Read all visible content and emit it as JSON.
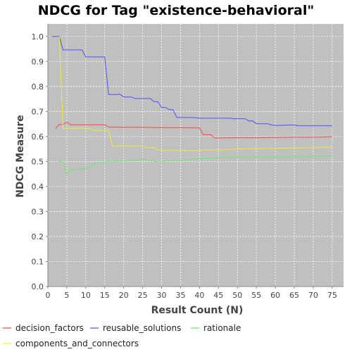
{
  "chart_data": {
    "type": "line",
    "title": "NDCG for Tag \"existence-behavioral\"",
    "xlabel": "Result Count (N)",
    "ylabel": "NDCG Measure",
    "xlim": [
      0,
      78
    ],
    "ylim": [
      0.0,
      1.05
    ],
    "xticks": [
      0,
      5,
      10,
      15,
      20,
      25,
      30,
      35,
      40,
      45,
      50,
      55,
      60,
      65,
      70,
      75
    ],
    "yticks": [
      0.0,
      0.1,
      0.2,
      0.3,
      0.4,
      0.5,
      0.6,
      0.7,
      0.8,
      0.9,
      1.0
    ],
    "grid": true,
    "legend_position": "bottom",
    "series": [
      {
        "name": "decision_factors",
        "color": "#ff4444",
        "points": [
          [
            2,
            0.631
          ],
          [
            3,
            0.648
          ],
          [
            4,
            0.648
          ],
          [
            5,
            0.657
          ],
          [
            6,
            0.647
          ],
          [
            7,
            0.647
          ],
          [
            8,
            0.647
          ],
          [
            9,
            0.647
          ],
          [
            10,
            0.647
          ],
          [
            11,
            0.647
          ],
          [
            12,
            0.647
          ],
          [
            13,
            0.647
          ],
          [
            14,
            0.647
          ],
          [
            15,
            0.647
          ],
          [
            16,
            0.638
          ],
          [
            20,
            0.637
          ],
          [
            25,
            0.637
          ],
          [
            30,
            0.635
          ],
          [
            35,
            0.635
          ],
          [
            40,
            0.634
          ],
          [
            41,
            0.607
          ],
          [
            43,
            0.607
          ],
          [
            44,
            0.594
          ],
          [
            50,
            0.595
          ],
          [
            55,
            0.595
          ],
          [
            60,
            0.596
          ],
          [
            65,
            0.597
          ],
          [
            70,
            0.597
          ],
          [
            75,
            0.599
          ]
        ]
      },
      {
        "name": "reusable_solutions",
        "color": "#4f4fff",
        "points": [
          [
            1,
            1.0
          ],
          [
            2,
            1.0
          ],
          [
            3,
            1.0
          ],
          [
            4,
            0.946
          ],
          [
            5,
            0.946
          ],
          [
            6,
            0.946
          ],
          [
            7,
            0.946
          ],
          [
            8,
            0.946
          ],
          [
            9,
            0.946
          ],
          [
            10,
            0.918
          ],
          [
            11,
            0.918
          ],
          [
            12,
            0.918
          ],
          [
            13,
            0.918
          ],
          [
            14,
            0.918
          ],
          [
            15,
            0.918
          ],
          [
            16,
            0.768
          ],
          [
            18,
            0.768
          ],
          [
            19,
            0.769
          ],
          [
            20,
            0.758
          ],
          [
            22,
            0.758
          ],
          [
            23,
            0.752
          ],
          [
            27,
            0.752
          ],
          [
            28,
            0.739
          ],
          [
            29,
            0.739
          ],
          [
            30,
            0.716
          ],
          [
            31,
            0.716
          ],
          [
            32,
            0.707
          ],
          [
            33,
            0.707
          ],
          [
            34,
            0.676
          ],
          [
            38,
            0.676
          ],
          [
            40,
            0.673
          ],
          [
            45,
            0.673
          ],
          [
            48,
            0.673
          ],
          [
            49,
            0.671
          ],
          [
            52,
            0.671
          ],
          [
            53,
            0.662
          ],
          [
            54,
            0.662
          ],
          [
            55,
            0.651
          ],
          [
            58,
            0.651
          ],
          [
            59,
            0.646
          ],
          [
            60,
            0.644
          ],
          [
            65,
            0.646
          ],
          [
            66,
            0.643
          ],
          [
            70,
            0.643
          ],
          [
            75,
            0.643
          ]
        ]
      },
      {
        "name": "rationale",
        "color": "#66ee66",
        "points": [
          [
            3,
            0.501
          ],
          [
            4,
            0.497
          ],
          [
            5,
            0.451
          ],
          [
            6,
            0.467
          ],
          [
            7,
            0.467
          ],
          [
            8,
            0.47
          ],
          [
            9,
            0.47
          ],
          [
            10,
            0.47
          ],
          [
            11,
            0.478
          ],
          [
            12,
            0.488
          ],
          [
            13,
            0.494
          ],
          [
            14,
            0.494
          ],
          [
            15,
            0.496
          ],
          [
            16,
            0.502
          ],
          [
            20,
            0.502
          ],
          [
            25,
            0.508
          ],
          [
            28,
            0.503
          ],
          [
            29,
            0.497
          ],
          [
            30,
            0.497
          ],
          [
            31,
            0.503
          ],
          [
            35,
            0.505
          ],
          [
            40,
            0.511
          ],
          [
            45,
            0.516
          ],
          [
            50,
            0.518
          ],
          [
            55,
            0.519
          ],
          [
            60,
            0.518
          ],
          [
            65,
            0.519
          ],
          [
            70,
            0.52
          ],
          [
            75,
            0.521
          ]
        ]
      },
      {
        "name": "components_and_connectors",
        "color": "#eeee33",
        "points": [
          [
            3,
            1.0
          ],
          [
            4,
            0.63
          ],
          [
            5,
            0.633
          ],
          [
            10,
            0.633
          ],
          [
            11,
            0.63
          ],
          [
            12,
            0.624
          ],
          [
            15,
            0.624
          ],
          [
            16,
            0.624
          ],
          [
            17,
            0.562
          ],
          [
            20,
            0.562
          ],
          [
            25,
            0.562
          ],
          [
            26,
            0.555
          ],
          [
            28,
            0.556
          ],
          [
            29,
            0.545
          ],
          [
            30,
            0.545
          ],
          [
            35,
            0.545
          ],
          [
            38,
            0.543
          ],
          [
            40,
            0.545
          ],
          [
            45,
            0.547
          ],
          [
            50,
            0.55
          ],
          [
            52,
            0.552
          ],
          [
            55,
            0.552
          ],
          [
            60,
            0.553
          ],
          [
            65,
            0.554
          ],
          [
            70,
            0.555
          ],
          [
            75,
            0.558
          ]
        ]
      }
    ]
  }
}
